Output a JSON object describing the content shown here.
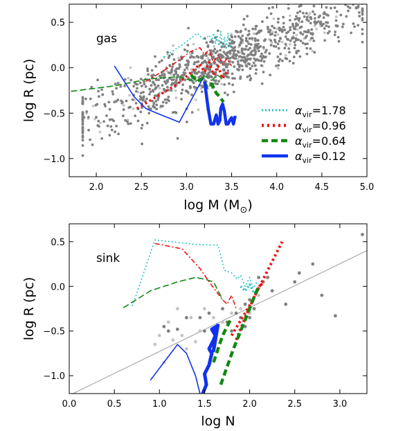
{
  "chart_data": [
    {
      "type": "scatter",
      "annotation": "gas",
      "xlabel": "log M (M",
      "xlabel_sub": "⊙",
      "xlabel_close": ")",
      "ylabel": "log R (pc)",
      "xlim": [
        1.7,
        5.0
      ],
      "ylim": [
        -1.2,
        0.7
      ],
      "xticks": [
        {
          "v": 2.0,
          "label": "2.0"
        },
        {
          "v": 2.5,
          "label": "2.5"
        },
        {
          "v": 3.0,
          "label": "3.0"
        },
        {
          "v": 3.5,
          "label": "3.5"
        },
        {
          "v": 4.0,
          "label": "4.0"
        },
        {
          "v": 4.5,
          "label": "4.5"
        },
        {
          "v": 5.0,
          "label": "5.0"
        }
      ],
      "yticks": [
        {
          "v": 0.5,
          "label": "0.5"
        },
        {
          "v": 0.0,
          "label": "0.0"
        },
        {
          "v": -0.5,
          "label": "−0.5"
        },
        {
          "v": -1.0,
          "label": "−1.0"
        }
      ],
      "legend": {
        "position": "lower-right",
        "entries": [
          {
            "base": "α",
            "sub": "vir",
            "value": "=1.78",
            "color": "#22c0c0",
            "dash": "2,3",
            "width": 3
          },
          {
            "base": "α",
            "sub": "vir",
            "value": "=0.96",
            "color": "#ee1111",
            "dash": "3,5",
            "width": 4.5
          },
          {
            "base": "α",
            "sub": "vir",
            "value": "=0.64",
            "color": "#118811",
            "dash": "9,5",
            "width": 4.5
          },
          {
            "base": "α",
            "sub": "vir",
            "value": "=0.12",
            "color": "#1133ee",
            "dash": "",
            "width": 4.5
          }
        ]
      },
      "scatter_cloud": {
        "trend": {
          "x0": 2.0,
          "y0": -0.5,
          "x1": 4.6,
          "y1": 0.55
        },
        "x_range": [
          1.85,
          4.95
        ],
        "scatter_sd": 0.16,
        "dark_count": 900,
        "light_count": 120,
        "dark_color": "#808080",
        "light_color": "#c4c4c4"
      },
      "series": [
        {
          "color": "#22c0c0",
          "dash": "2,3",
          "width": 1.6,
          "x": [
            2.75,
            2.95,
            3.12,
            3.2,
            3.25,
            3.28,
            3.3,
            3.32,
            3.34,
            3.36,
            3.38,
            3.4,
            3.42,
            3.44,
            3.46,
            3.48,
            3.5
          ],
          "y": [
            0.12,
            0.25,
            0.38,
            0.3,
            0.36,
            0.3,
            0.38,
            0.26,
            0.36,
            0.24,
            0.4,
            0.22,
            0.34,
            0.2,
            0.38,
            0.22,
            0.3
          ]
        },
        {
          "color": "#ee1111",
          "dash": "7,3,2,3",
          "width": 1.6,
          "x": [
            2.55,
            2.8,
            3.05,
            3.15,
            3.2,
            3.25,
            3.3,
            3.35,
            3.4,
            3.45,
            3.5
          ],
          "y": [
            -0.15,
            0.0,
            0.18,
            0.22,
            0.14,
            0.2,
            0.06,
            0.14,
            0.04,
            0.1,
            0.02
          ]
        },
        {
          "color": "#ee1111",
          "dash": "3,4",
          "width": 3.5,
          "x": [
            2.45,
            2.7,
            2.9,
            3.05,
            3.15,
            3.2,
            3.25,
            3.3,
            3.35,
            3.4,
            3.45
          ],
          "y": [
            -0.45,
            -0.3,
            -0.18,
            -0.05,
            0.04,
            -0.05,
            0.06,
            -0.08,
            0.02,
            -0.12,
            -0.04
          ]
        },
        {
          "color": "#118811",
          "dash": "9,4",
          "width": 1.6,
          "x": [
            1.72,
            2.2,
            2.6,
            2.9,
            3.1,
            3.2,
            3.28,
            3.34,
            3.4
          ],
          "y": [
            -0.26,
            -0.2,
            -0.12,
            -0.1,
            -0.15,
            -0.09,
            -0.14,
            -0.08,
            -0.12
          ]
        },
        {
          "color": "#118811",
          "dash": "9,5",
          "width": 4.5,
          "x": [
            3.05,
            3.12,
            3.18,
            3.23,
            3.28,
            3.33,
            3.37,
            3.41
          ],
          "y": [
            -0.08,
            -0.15,
            -0.12,
            -0.22,
            -0.18,
            -0.28,
            -0.32,
            -0.38
          ]
        },
        {
          "color": "#1133ee",
          "dash": "",
          "width": 1.6,
          "x": [
            2.2,
            2.42,
            2.55,
            2.72,
            2.92,
            3.18
          ],
          "y": [
            0.02,
            -0.32,
            -0.45,
            -0.52,
            -0.6,
            -0.12
          ]
        },
        {
          "color": "#1133ee",
          "dash": "",
          "width": 4.5,
          "x": [
            3.2,
            3.22,
            3.24,
            3.27,
            3.3,
            3.33,
            3.35,
            3.37,
            3.38,
            3.4,
            3.42,
            3.44,
            3.46,
            3.48,
            3.5,
            3.52,
            3.54
          ],
          "y": [
            -0.15,
            -0.3,
            -0.45,
            -0.62,
            -0.62,
            -0.52,
            -0.62,
            -0.58,
            -0.45,
            -0.4,
            -0.48,
            -0.62,
            -0.62,
            -0.58,
            -0.55,
            -0.62,
            -0.53
          ]
        }
      ]
    },
    {
      "type": "scatter",
      "annotation": "sink",
      "xlabel": "log N",
      "ylabel": "log R (pc)",
      "xlim": [
        0.0,
        3.3
      ],
      "ylim": [
        -1.2,
        0.7
      ],
      "xticks": [
        {
          "v": 0.0,
          "label": "0.0"
        },
        {
          "v": 0.5,
          "label": "0.5"
        },
        {
          "v": 1.0,
          "label": "1.0"
        },
        {
          "v": 1.5,
          "label": "1.5"
        },
        {
          "v": 2.0,
          "label": "2.0"
        },
        {
          "v": 2.5,
          "label": "2.5"
        },
        {
          "v": 3.0,
          "label": "3.0"
        }
      ],
      "yticks": [
        {
          "v": 0.5,
          "label": "0.5"
        },
        {
          "v": 0.0,
          "label": "0.0"
        },
        {
          "v": -0.5,
          "label": "−0.5"
        },
        {
          "v": -1.0,
          "label": "−1.0"
        }
      ],
      "reference_line": {
        "x0": 0.0,
        "y0": -1.22,
        "x1": 3.3,
        "y1": 0.4,
        "color": "#b0b0b0"
      },
      "points_dark": [
        [
          1.05,
          -0.45
        ],
        [
          1.1,
          -0.5
        ],
        [
          1.2,
          -0.48
        ],
        [
          1.3,
          -0.35
        ],
        [
          1.45,
          -0.35
        ],
        [
          1.5,
          -0.5
        ],
        [
          1.55,
          -0.3
        ],
        [
          1.6,
          -0.6
        ],
        [
          1.7,
          -0.25
        ],
        [
          1.75,
          -0.4
        ],
        [
          1.8,
          -0.5
        ],
        [
          1.85,
          -0.3
        ],
        [
          1.9,
          -0.35
        ],
        [
          1.95,
          -0.2
        ],
        [
          2.0,
          -0.15
        ],
        [
          2.05,
          -0.25
        ],
        [
          2.1,
          0.1
        ],
        [
          2.15,
          0.05
        ],
        [
          2.2,
          0.1
        ],
        [
          2.25,
          -0.05
        ],
        [
          2.4,
          -0.2
        ],
        [
          2.5,
          0.05
        ],
        [
          2.55,
          0.15
        ],
        [
          2.7,
          0.25
        ],
        [
          2.8,
          -0.1
        ],
        [
          2.95,
          -0.33
        ],
        [
          3.25,
          0.58
        ],
        [
          1.95,
          -0.45
        ],
        [
          2.0,
          -0.35
        ]
      ],
      "points_light": [
        [
          1.0,
          -0.55
        ],
        [
          0.95,
          -0.65
        ],
        [
          1.1,
          -0.4
        ],
        [
          1.15,
          -0.6
        ],
        [
          1.25,
          -0.55
        ],
        [
          1.35,
          -0.35
        ],
        [
          1.4,
          -0.62
        ],
        [
          1.45,
          -0.5
        ],
        [
          1.5,
          -0.25
        ],
        [
          1.6,
          -0.35
        ],
        [
          1.7,
          -0.4
        ],
        [
          1.8,
          -0.3
        ],
        [
          1.9,
          -0.25
        ],
        [
          2.0,
          -0.3
        ],
        [
          2.1,
          -0.1
        ],
        [
          1.05,
          -0.85
        ],
        [
          1.2,
          -0.25
        ],
        [
          1.3,
          -0.7
        ]
      ],
      "series": [
        {
          "color": "#22c0c0",
          "dash": "2,3",
          "width": 1.6,
          "x": [
            0.7,
            0.95,
            1.4,
            1.65,
            1.72,
            1.8,
            1.86,
            1.9,
            1.95,
            2.0,
            2.04,
            2.08
          ],
          "y": [
            -0.22,
            0.52,
            0.47,
            0.46,
            0.18,
            0.15,
            0.08,
            0.12,
            0.0,
            0.1,
            -0.02,
            0.05
          ]
        },
        {
          "color": "#ee1111",
          "dash": "7,3,2,3",
          "width": 1.6,
          "x": [
            0.95,
            1.25,
            1.45,
            1.55,
            1.7,
            1.75,
            1.8,
            1.85
          ],
          "y": [
            0.48,
            0.42,
            0.2,
            0.05,
            -0.15,
            -0.2,
            -0.1,
            -0.25
          ]
        },
        {
          "color": "#118811",
          "dash": "9,4",
          "width": 1.6,
          "x": [
            0.6,
            0.9,
            1.2,
            1.4,
            1.5,
            1.6,
            1.7
          ],
          "y": [
            -0.24,
            -0.05,
            0.05,
            0.1,
            0.08,
            0.05,
            -0.15
          ]
        },
        {
          "color": "#ee1111",
          "dash": "3,4",
          "width": 4,
          "x": [
            1.85,
            1.95,
            2.05,
            2.15,
            2.22,
            2.3,
            2.36
          ],
          "y": [
            -0.6,
            -0.35,
            -0.12,
            0.08,
            0.22,
            0.38,
            0.5
          ]
        },
        {
          "color": "#ee1111",
          "dash": "3,4",
          "width": 4,
          "x": [
            1.8,
            1.9,
            1.98,
            2.05,
            2.1,
            2.15
          ],
          "y": [
            -0.55,
            -0.38,
            -0.25,
            -0.12,
            -0.02,
            0.05
          ]
        },
        {
          "color": "#22c0c0",
          "dash": "2,3",
          "width": 3.5,
          "x": [
            1.9,
            1.95,
            2.0,
            2.05,
            2.1
          ],
          "y": [
            0.0,
            -0.05,
            0.02,
            -0.08,
            -0.02
          ]
        },
        {
          "color": "#118811",
          "dash": "9,5",
          "width": 4.5,
          "x": [
            1.68,
            1.75,
            1.82,
            1.88,
            1.94,
            2.0,
            2.05,
            2.1
          ],
          "y": [
            -1.1,
            -0.9,
            -0.7,
            -0.55,
            -0.4,
            -0.25,
            -0.12,
            0.0
          ]
        },
        {
          "color": "#118811",
          "dash": "9,5",
          "width": 4.5,
          "x": [
            1.6,
            1.65,
            1.7,
            1.75,
            1.8
          ],
          "y": [
            -0.85,
            -0.7,
            -0.55,
            -0.45,
            -0.35
          ]
        },
        {
          "color": "#1133ee",
          "dash": "",
          "width": 1.6,
          "x": [
            0.9,
            1.05,
            1.2,
            1.3,
            1.4,
            1.45
          ],
          "y": [
            -1.05,
            -0.85,
            -0.65,
            -0.75,
            -1.0,
            -1.2
          ]
        },
        {
          "color": "#1133ee",
          "dash": "",
          "width": 5,
          "x": [
            1.48,
            1.52,
            1.5,
            1.55,
            1.58,
            1.55,
            1.6,
            1.62,
            1.58,
            1.63,
            1.6,
            1.65
          ],
          "y": [
            -1.2,
            -1.1,
            -0.98,
            -0.88,
            -0.75,
            -0.7,
            -0.6,
            -0.55,
            -0.48,
            -0.45,
            -0.72,
            -0.42
          ]
        }
      ]
    }
  ]
}
